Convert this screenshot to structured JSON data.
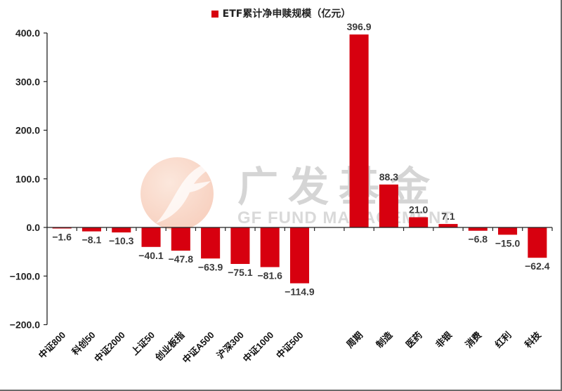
{
  "chart_data": {
    "type": "bar",
    "title": "",
    "legend": [
      {
        "label": "ETF累计净申赎规模（亿元）",
        "color": "#d7000f"
      }
    ],
    "legend_position": "top",
    "xlabel": "",
    "ylabel": "",
    "ylim": [
      -200,
      400
    ],
    "yticks": [
      "400.0",
      "300.0",
      "200.0",
      "100.0",
      "0.0",
      "-100.0",
      "-200.0"
    ],
    "grid": false,
    "categories": [
      "中证800",
      "科创50",
      "中证2000",
      "上证50",
      "创业板指",
      "中证A500",
      "沪深300",
      "中证1000",
      "中证500",
      "",
      "周期",
      "制造",
      "医药",
      "非银",
      "消费",
      "红利",
      "科技"
    ],
    "series": [
      {
        "name": "ETF累计净申赎规模（亿元）",
        "color": "#d7000f",
        "values": [
          -1.6,
          -8.1,
          -10.3,
          -40.1,
          -47.8,
          -63.9,
          -75.1,
          -81.6,
          -114.9,
          null,
          396.9,
          88.3,
          21.0,
          7.1,
          -6.8,
          -15.0,
          -62.4
        ]
      }
    ],
    "data_labels": [
      "-1.6",
      "-8.1",
      "-10.3",
      "-40.1",
      "-47.8",
      "-63.9",
      "-75.1",
      "-81.6",
      "-114.9",
      "",
      "396.9",
      "88.3",
      "21.0",
      "7.1",
      "-6.8",
      "-15.0",
      "-62.4"
    ]
  },
  "watermark": {
    "cn": "广发基金",
    "en": "GF FUND MANAGEMENT",
    "logo": "gf-logo-icon"
  },
  "colors": {
    "bar": "#d7000f",
    "axis": "#222222",
    "label": "#3a3a3a"
  }
}
